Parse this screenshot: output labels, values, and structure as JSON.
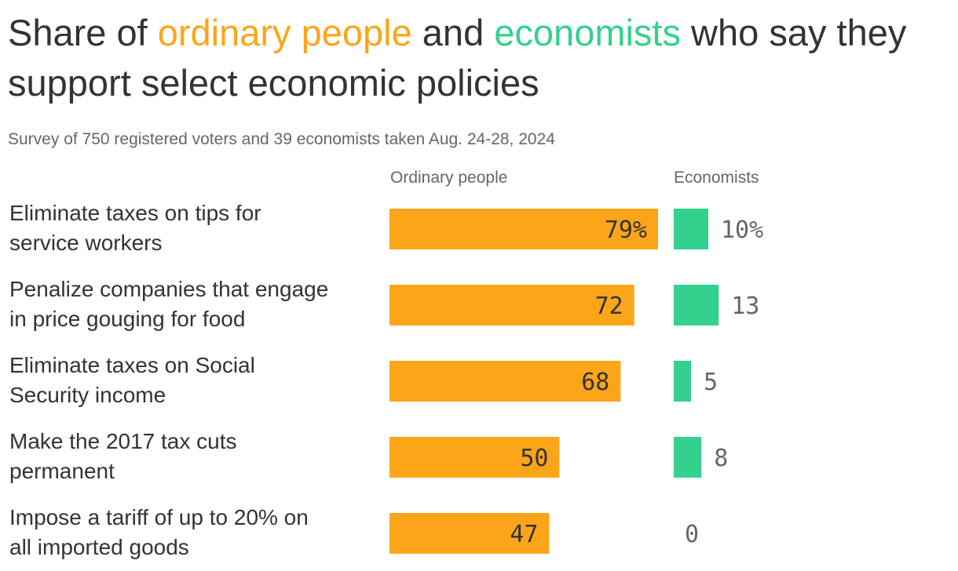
{
  "title": {
    "part1": "Share of ",
    "ordinary": "ordinary people",
    "part2": " and ",
    "economists": "economists",
    "part3": " who say they support select economic policies"
  },
  "subtitle": "Survey of 750 registered voters and 39 economists taken Aug. 24-28, 2024",
  "colors": {
    "ordinary": "#fda519",
    "economists": "#33d18d"
  },
  "chart_data": {
    "type": "bar",
    "orientation": "horizontal",
    "categories": [
      [
        "Eliminate taxes on tips for",
        "service workers"
      ],
      [
        "Penalize companies that engage",
        "in price gouging for food"
      ],
      [
        "Eliminate taxes on Social",
        "Security income"
      ],
      [
        "Make the 2017 tax cuts",
        "permanent"
      ],
      [
        "Impose a tariff of up to 20% on",
        "all imported goods"
      ]
    ],
    "series": [
      {
        "name": "Ordinary people",
        "values": [
          79,
          72,
          68,
          50,
          47
        ],
        "labels": [
          "79%",
          "72",
          "68",
          "50",
          "47"
        ]
      },
      {
        "name": "Economists",
        "values": [
          10,
          13,
          5,
          8,
          0
        ],
        "labels": [
          "10%",
          "13",
          "5",
          "8",
          "0"
        ]
      }
    ],
    "unit": "%"
  }
}
